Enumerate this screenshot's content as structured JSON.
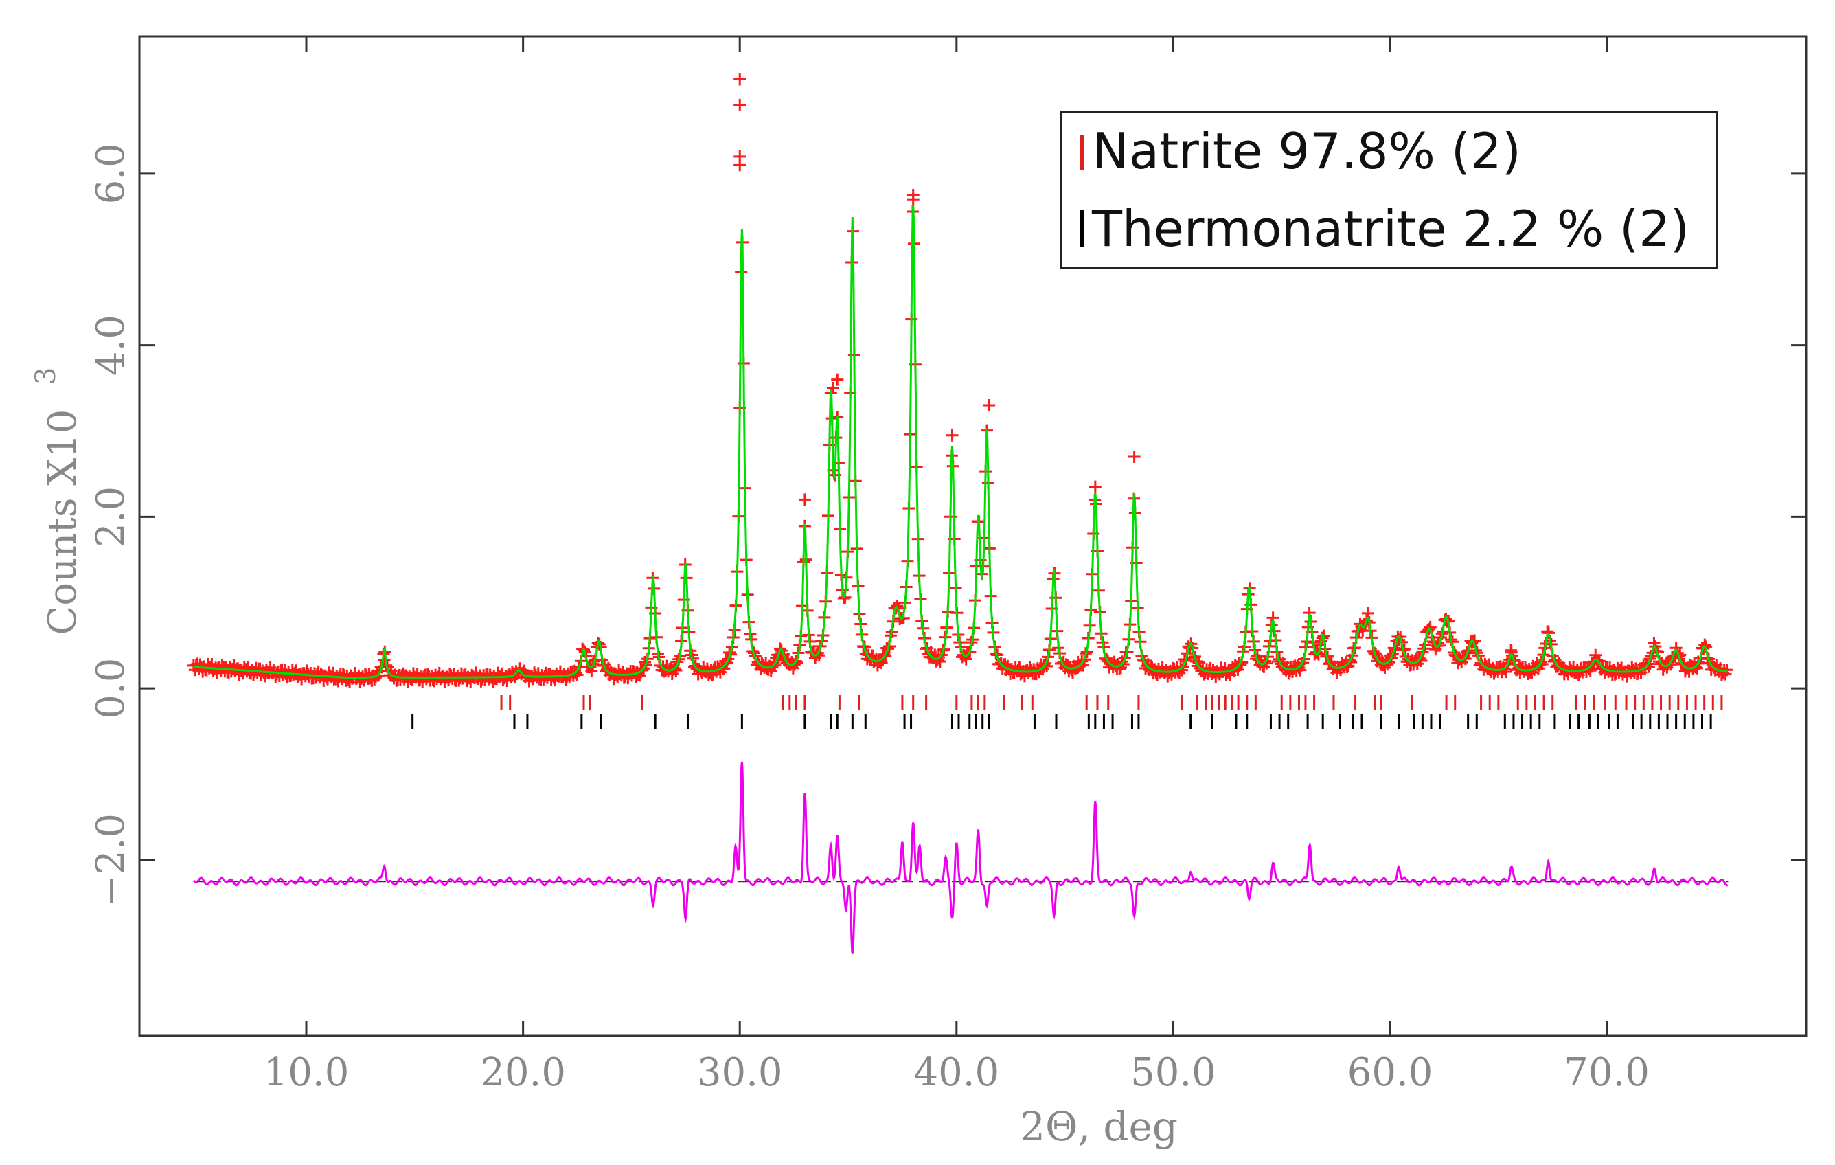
{
  "chart_data": {
    "type": "line",
    "title": "",
    "xlabel": "2Θ, deg",
    "ylabel": "Counts X10",
    "ylabel_exponent": "3",
    "xlim": [
      2.3,
      79.2
    ],
    "ylim": [
      -4.05,
      7.6
    ],
    "x_ticks": [
      10.0,
      20.0,
      30.0,
      40.0,
      50.0,
      60.0,
      70.0
    ],
    "x_tick_labels": [
      "10.0",
      "20.0",
      "30.0",
      "40.0",
      "50.0",
      "60.0",
      "70.0"
    ],
    "y_ticks": [
      -2.0,
      0.0,
      2.0,
      4.0,
      6.0
    ],
    "y_tick_labels": [
      "−2.0",
      "0.0",
      "2.0",
      "4.0",
      "6.0"
    ],
    "two_theta_range": [
      4.8,
      75.6
    ],
    "background": {
      "start": 0.25,
      "min": 0.12,
      "end": 0.18
    },
    "peaks": [
      {
        "pos": 13.6,
        "height": 0.32,
        "width": 0.1
      },
      {
        "pos": 19.8,
        "height": 0.08,
        "width": 0.15
      },
      {
        "pos": 22.8,
        "height": 0.3,
        "width": 0.15
      },
      {
        "pos": 23.5,
        "height": 0.4,
        "width": 0.15
      },
      {
        "pos": 26.0,
        "height": 1.15,
        "width": 0.12
      },
      {
        "pos": 27.5,
        "height": 1.3,
        "width": 0.12
      },
      {
        "pos": 30.1,
        "height": 5.2,
        "width": 0.12
      },
      {
        "pos": 31.9,
        "height": 0.25,
        "width": 0.2
      },
      {
        "pos": 33.0,
        "height": 1.7,
        "width": 0.1
      },
      {
        "pos": 34.2,
        "height": 2.9,
        "width": 0.13
      },
      {
        "pos": 34.5,
        "height": 2.4,
        "width": 0.12
      },
      {
        "pos": 35.2,
        "height": 5.2,
        "width": 0.12
      },
      {
        "pos": 37.2,
        "height": 0.6,
        "width": 0.25
      },
      {
        "pos": 38.0,
        "height": 5.4,
        "width": 0.14
      },
      {
        "pos": 39.8,
        "height": 2.6,
        "width": 0.12
      },
      {
        "pos": 41.0,
        "height": 1.6,
        "width": 0.12
      },
      {
        "pos": 41.4,
        "height": 2.7,
        "width": 0.12
      },
      {
        "pos": 44.5,
        "height": 1.2,
        "width": 0.12
      },
      {
        "pos": 46.4,
        "height": 2.1,
        "width": 0.15
      },
      {
        "pos": 48.2,
        "height": 2.1,
        "width": 0.12
      },
      {
        "pos": 50.8,
        "height": 0.35,
        "width": 0.2
      },
      {
        "pos": 53.5,
        "height": 1.0,
        "width": 0.15
      },
      {
        "pos": 54.6,
        "height": 0.6,
        "width": 0.15
      },
      {
        "pos": 56.3,
        "height": 0.65,
        "width": 0.15
      },
      {
        "pos": 56.9,
        "height": 0.4,
        "width": 0.15
      },
      {
        "pos": 58.6,
        "height": 0.45,
        "width": 0.25
      },
      {
        "pos": 59.0,
        "height": 0.5,
        "width": 0.2
      },
      {
        "pos": 60.4,
        "height": 0.4,
        "width": 0.25
      },
      {
        "pos": 61.8,
        "height": 0.45,
        "width": 0.25
      },
      {
        "pos": 62.6,
        "height": 0.6,
        "width": 0.25
      },
      {
        "pos": 63.8,
        "height": 0.35,
        "width": 0.25
      },
      {
        "pos": 65.6,
        "height": 0.2,
        "width": 0.15
      },
      {
        "pos": 67.3,
        "height": 0.45,
        "width": 0.2
      },
      {
        "pos": 69.5,
        "height": 0.15,
        "width": 0.25
      },
      {
        "pos": 72.2,
        "height": 0.3,
        "width": 0.2
      },
      {
        "pos": 73.2,
        "height": 0.25,
        "width": 0.2
      },
      {
        "pos": 74.5,
        "height": 0.3,
        "width": 0.2
      }
    ],
    "observed_outliers": [
      {
        "x": 30.0,
        "y": 7.1
      },
      {
        "x": 30.0,
        "y": 6.8
      },
      {
        "x": 30.0,
        "y": 6.2
      },
      {
        "x": 30.0,
        "y": 6.1
      },
      {
        "x": 38.0,
        "y": 5.75
      },
      {
        "x": 38.0,
        "y": 5.7
      },
      {
        "x": 34.3,
        "y": 3.5
      },
      {
        "x": 34.5,
        "y": 3.6
      },
      {
        "x": 41.5,
        "y": 3.3
      },
      {
        "x": 39.8,
        "y": 2.95
      },
      {
        "x": 48.2,
        "y": 2.7
      },
      {
        "x": 46.4,
        "y": 2.35
      },
      {
        "x": 33.0,
        "y": 2.2
      },
      {
        "x": 65.6,
        "y": 0.42
      },
      {
        "x": 13.6,
        "y": 0.33
      }
    ],
    "difference_offset": -2.25,
    "difference_spikes": [
      {
        "pos": 13.6,
        "amp": 0.2
      },
      {
        "pos": 26.0,
        "amp": -0.25
      },
      {
        "pos": 27.5,
        "amp": -0.45
      },
      {
        "pos": 29.8,
        "amp": 0.4
      },
      {
        "pos": 30.1,
        "amp": 1.4
      },
      {
        "pos": 33.0,
        "amp": 1.05
      },
      {
        "pos": 34.2,
        "amp": 0.45
      },
      {
        "pos": 34.5,
        "amp": 0.5
      },
      {
        "pos": 34.9,
        "amp": -0.35
      },
      {
        "pos": 35.2,
        "amp": -0.8
      },
      {
        "pos": 37.5,
        "amp": 0.5
      },
      {
        "pos": 38.0,
        "amp": 0.7
      },
      {
        "pos": 38.3,
        "amp": 0.4
      },
      {
        "pos": 39.5,
        "amp": 0.25
      },
      {
        "pos": 39.8,
        "amp": -0.4
      },
      {
        "pos": 40.0,
        "amp": 0.45
      },
      {
        "pos": 41.0,
        "amp": 0.6
      },
      {
        "pos": 41.4,
        "amp": -0.3
      },
      {
        "pos": 44.5,
        "amp": -0.4
      },
      {
        "pos": 46.4,
        "amp": 0.9
      },
      {
        "pos": 48.2,
        "amp": -0.4
      },
      {
        "pos": 50.8,
        "amp": 0.15
      },
      {
        "pos": 53.5,
        "amp": -0.2
      },
      {
        "pos": 54.6,
        "amp": 0.2
      },
      {
        "pos": 56.3,
        "amp": 0.45
      },
      {
        "pos": 60.4,
        "amp": 0.2
      },
      {
        "pos": 65.6,
        "amp": 0.15
      },
      {
        "pos": 67.3,
        "amp": 0.28
      },
      {
        "pos": 72.2,
        "amp": 0.15
      }
    ],
    "tick_marks": {
      "natrite": [
        19.0,
        19.4,
        22.8,
        23.1,
        25.5,
        32.0,
        32.3,
        32.6,
        33.0,
        34.6,
        35.5,
        37.5,
        38.0,
        38.6,
        40.0,
        40.7,
        41.0,
        41.3,
        42.2,
        43.0,
        43.5,
        46.0,
        46.5,
        47.0,
        48.4,
        50.4,
        51.1,
        51.5,
        51.8,
        52.1,
        52.4,
        52.7,
        53.0,
        53.4,
        53.8,
        55.0,
        55.4,
        55.8,
        56.1,
        56.5,
        57.4,
        58.4,
        59.3,
        59.6,
        61.0,
        62.6,
        63.0,
        64.2,
        64.6,
        65.0,
        65.9,
        66.3,
        66.7,
        67.1,
        67.5,
        68.6,
        69.0,
        69.4,
        69.9,
        70.4,
        70.9,
        71.3,
        71.7,
        72.1,
        72.5,
        72.9,
        73.3,
        73.7,
        74.1,
        74.5,
        74.9,
        75.3
      ],
      "thermonatrite": [
        14.9,
        19.6,
        20.2,
        22.7,
        23.6,
        26.1,
        27.6,
        30.1,
        33.0,
        34.2,
        34.5,
        35.2,
        35.8,
        37.6,
        37.9,
        39.8,
        40.1,
        40.6,
        40.9,
        41.2,
        41.5,
        43.6,
        44.6,
        46.1,
        46.4,
        46.8,
        47.2,
        48.1,
        48.4,
        50.8,
        51.8,
        52.9,
        53.4,
        54.5,
        54.9,
        55.3,
        56.2,
        56.9,
        57.7,
        58.3,
        58.7,
        59.6,
        60.4,
        61.1,
        61.5,
        61.9,
        62.3,
        63.6,
        64.0,
        65.3,
        65.7,
        66.1,
        66.5,
        66.9,
        67.6,
        68.3,
        68.7,
        69.2,
        69.6,
        70.1,
        70.5,
        71.2,
        71.6,
        72.0,
        72.4,
        72.8,
        73.2,
        73.6,
        74.0,
        74.4,
        74.8
      ]
    },
    "legend": [
      {
        "marker": "|",
        "label": "Natrite 97.8% (2)",
        "color": "#e02020"
      },
      {
        "marker": "|",
        "label": "Thermonatrite 2.2 % (2)",
        "color": "#000000"
      }
    ],
    "legend_placement": "top-right",
    "colors": {
      "observed": "#ff1a1a",
      "calculated": "#00dd00",
      "difference": "#ee00ee",
      "natrite_ticks": "#e02020",
      "thermonatrite_ticks": "#000000",
      "axis": "#333333",
      "labels": "#888888"
    },
    "series": [
      {
        "name": "observed",
        "style": "+ markers"
      },
      {
        "name": "calculated",
        "style": "line"
      },
      {
        "name": "difference",
        "style": "line"
      }
    ]
  }
}
